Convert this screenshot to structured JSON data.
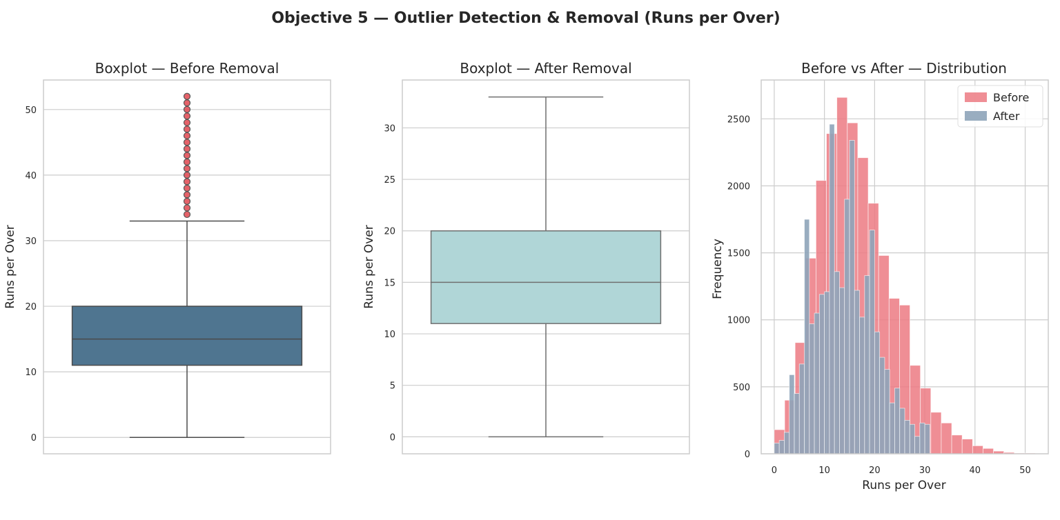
{
  "suptitle": "Objective 5 — Outlier Detection & Removal (Runs per Over)",
  "colors": {
    "grid": "#cccccc",
    "axis": "#cccccc",
    "text": "#262626",
    "box_before": "#4f7590",
    "box_after": "#b0d6d7",
    "box_line_before": "#4a4a4a",
    "box_line_after": "#6f6f6f",
    "outlier_fill": "#e0464f",
    "outlier_edge": "#555555",
    "hist_before": "#ec7a83",
    "hist_after": "#8ea4b9"
  },
  "chart_data": [
    {
      "type": "box",
      "title": "Boxplot — Before Removal",
      "xlabel": "",
      "ylabel": "Runs per Over",
      "ylim": [
        -2.5,
        54.5
      ],
      "yticks": [
        0,
        10,
        20,
        30,
        40,
        50
      ],
      "grid": true,
      "box": {
        "whisker_low": 0,
        "q1": 11,
        "median": 15,
        "q3": 20,
        "whisker_high": 33
      },
      "outliers": [
        34,
        35,
        36,
        37,
        38,
        39,
        40,
        41,
        42,
        43,
        44,
        45,
        46,
        47,
        48,
        49,
        50,
        51,
        52
      ]
    },
    {
      "type": "box",
      "title": "Boxplot — After Removal",
      "xlabel": "",
      "ylabel": "Runs per Over",
      "ylim": [
        -1.65,
        34.65
      ],
      "yticks": [
        0,
        5,
        10,
        15,
        20,
        25,
        30
      ],
      "grid": true,
      "box": {
        "whisker_low": 0,
        "q1": 11,
        "median": 15,
        "q3": 20,
        "whisker_high": 33
      },
      "outliers": []
    },
    {
      "type": "histogram",
      "title": "Before vs After — Distribution",
      "xlabel": "Runs per Over",
      "ylabel": "Frequency",
      "xlim": [
        -2.6,
        54.6
      ],
      "ylim": [
        0,
        2790
      ],
      "xticks": [
        0,
        10,
        20,
        30,
        40,
        50
      ],
      "yticks": [
        0,
        500,
        1000,
        1500,
        2000,
        2500
      ],
      "grid": true,
      "legend_position": "top-right",
      "series": [
        {
          "name": "Before",
          "bin_start": 0,
          "bin_width": 2.08,
          "counts": [
            180,
            400,
            830,
            1460,
            2040,
            2390,
            2660,
            2470,
            2210,
            1870,
            1480,
            1160,
            1110,
            660,
            490,
            310,
            230,
            140,
            110,
            60,
            40,
            20,
            10,
            5,
            5
          ]
        },
        {
          "name": "After",
          "bin_start": 0,
          "bin_width": 1.0,
          "counts": [
            80,
            100,
            160,
            590,
            450,
            670,
            1750,
            970,
            1050,
            1190,
            1210,
            2460,
            1360,
            1240,
            1900,
            2340,
            1220,
            1020,
            1330,
            1670,
            910,
            720,
            630,
            380,
            490,
            340,
            250,
            220,
            130,
            230,
            220,
            0,
            0,
            0
          ]
        }
      ]
    }
  ]
}
